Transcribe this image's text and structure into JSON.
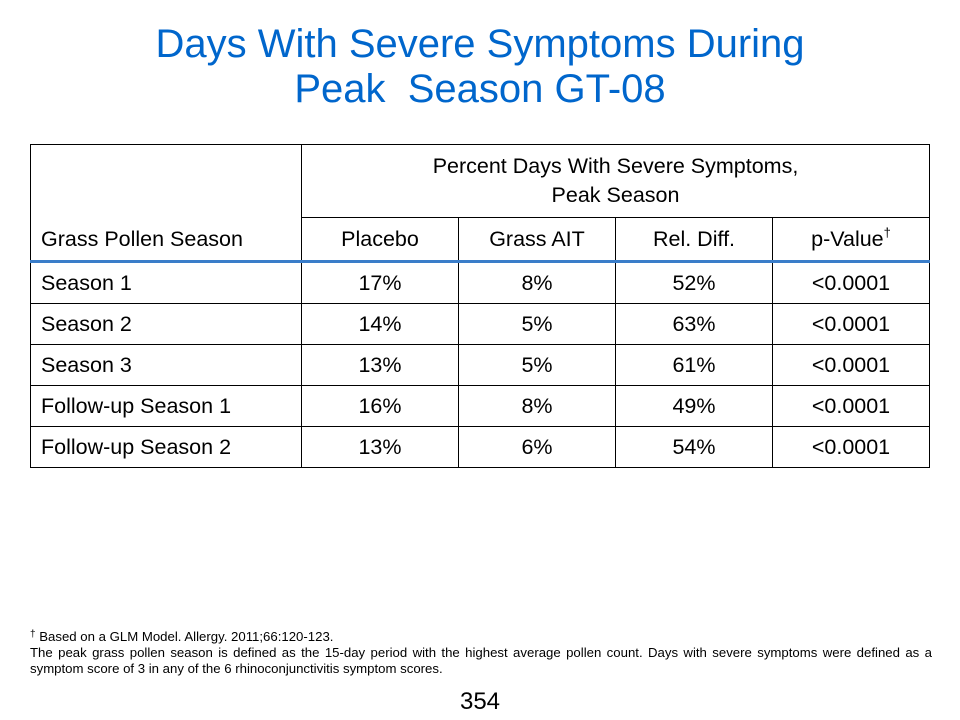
{
  "slide": {
    "title_line1": "Days With Severe Symptoms During",
    "title_line2": "Peak  Season GT-08",
    "title_color": "#0066cc"
  },
  "table": {
    "stub_header": "Grass Pollen Season",
    "group_header_line1": "Percent Days With Severe Symptoms,",
    "group_header_line2": "Peak Season",
    "columns": [
      "Placebo",
      "Grass AIT",
      "Rel. Diff.",
      "p-Value"
    ],
    "pvalue_mark": "†",
    "rows": [
      {
        "label": "Season 1",
        "values": [
          "17%",
          "8%",
          "52%",
          "<0.0001"
        ]
      },
      {
        "label": "Season 2",
        "values": [
          "14%",
          "5%",
          "63%",
          "<0.0001"
        ]
      },
      {
        "label": "Season 3",
        "values": [
          "13%",
          "5%",
          "61%",
          "<0.0001"
        ]
      },
      {
        "label": "Follow-up Season 1",
        "values": [
          "16%",
          "8%",
          "49%",
          "<0.0001"
        ]
      },
      {
        "label": "Follow-up Season 2",
        "values": [
          "13%",
          "6%",
          "54%",
          "<0.0001"
        ]
      }
    ],
    "header_rule_color": "#3a7dc9"
  },
  "footnote": {
    "dagger": "†",
    "line1": " Based  on a GLM  Model.  Allergy.  2011;66:120-123.",
    "line2": "The  peak grass  pollen  season  is defined  as the  15-day  period  with  the  highest  average  pollen  count.  Days with  severe symptoms  were  defined  as a  symptom  score  of 3  in any of the   6  rhinoconjunctivitis  symptom  scores."
  },
  "page_number": "354"
}
